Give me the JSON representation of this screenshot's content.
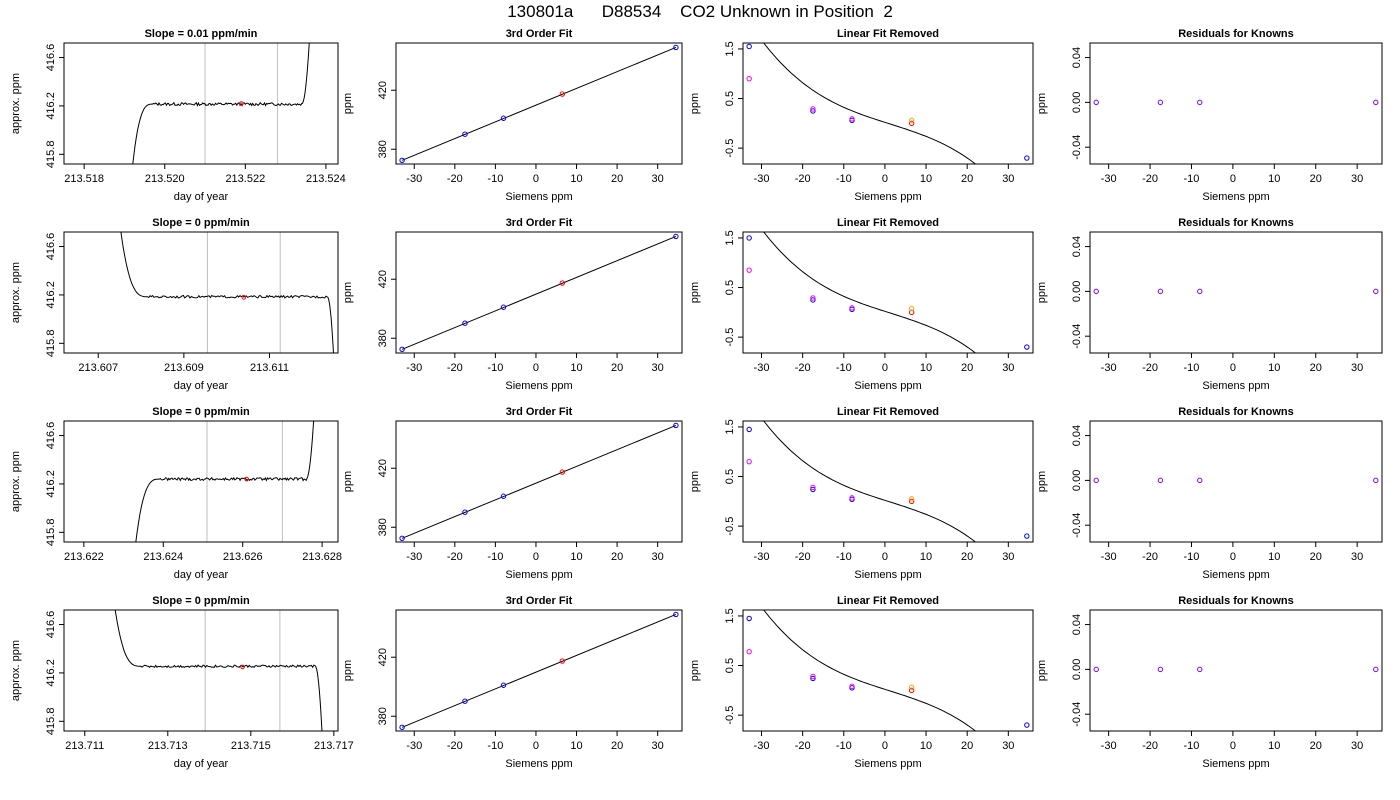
{
  "title": "130801a      D88534    CO2 Unknown in Position  2",
  "colors": {
    "frame": "#000000",
    "trace": "#000000",
    "vline": "#bebebe",
    "known_point": "#0000ff",
    "unknown_point": "#ff0000",
    "orig_point": "#ff00ff",
    "alt_point": "#ffa500",
    "residual_point": "#8000ff"
  },
  "chart_data": [
    {
      "id": "r1-time",
      "type": "line",
      "title": "Slope =  0.01  ppm/min",
      "xlabel": "day of year",
      "ylabel": "approx. ppm",
      "xlim": [
        213.5175,
        213.5243
      ],
      "ylim": [
        415.72,
        416.72
      ],
      "xticks": [
        "213.518",
        "213.520",
        "213.522",
        "213.524"
      ],
      "yticks": [
        "415.8",
        "416.2",
        "416.6"
      ],
      "vlines": [
        213.521,
        213.5228
      ],
      "trace": {
        "start": 213.5192,
        "flat_from": 213.5197,
        "flat_to": 213.5234,
        "end": 213.5236,
        "start_y": 415.7,
        "end_y": 416.8,
        "level": 416.215,
        "noise": 0.012
      },
      "unknown_marker": {
        "x": 213.5219,
        "y": 416.22
      }
    },
    {
      "id": "r1-fit",
      "type": "scatter",
      "title": "3rd Order Fit",
      "xlabel": "Siemens ppm",
      "ylabel": "ppm",
      "xlim": [
        -34.5,
        36
      ],
      "ylim": [
        370,
        452
      ],
      "xticks": [
        "-30",
        "-20",
        "-10",
        "0",
        "10",
        "20",
        "30"
      ],
      "yticks": [
        "380",
        "420"
      ],
      "line": {
        "x1": -33,
        "y1": 372.5,
        "x2": 34.5,
        "y2": 449
      },
      "points": [
        {
          "x": -33,
          "y": 372.5,
          "role": "known"
        },
        {
          "x": -17.5,
          "y": 390.2,
          "role": "known"
        },
        {
          "x": -8,
          "y": 401,
          "role": "known"
        },
        {
          "x": 6.5,
          "y": 417.4,
          "role": "unknown"
        },
        {
          "x": 34.5,
          "y": 449,
          "role": "known"
        }
      ]
    },
    {
      "id": "r1-lin",
      "type": "scatter",
      "title": "Linear Fit Removed",
      "xlabel": "Siemens ppm",
      "ylabel": "ppm",
      "xlim": [
        -34.5,
        36
      ],
      "ylim": [
        -0.82,
        1.62
      ],
      "xticks": [
        "-30",
        "-20",
        "-10",
        "0",
        "10",
        "20",
        "30"
      ],
      "yticks": [
        "-0.5",
        "0.5",
        "1.5"
      ],
      "curve": {
        "x0": -33,
        "x1": 34.5,
        "c0": 0.02,
        "c1": -0.0264,
        "c2": 0.0001,
        "c3": -2.88e-05
      },
      "points": [
        {
          "x": -33,
          "y": 1.55,
          "role": "known"
        },
        {
          "x": -33,
          "y": 0.9,
          "role": "orig"
        },
        {
          "x": -17.5,
          "y": 0.25,
          "role": "known"
        },
        {
          "x": -17.5,
          "y": 0.29,
          "role": "orig"
        },
        {
          "x": -8,
          "y": 0.06,
          "role": "known"
        },
        {
          "x": -8,
          "y": 0.09,
          "role": "orig"
        },
        {
          "x": 6.5,
          "y": 0.0,
          "role": "unknown"
        },
        {
          "x": 6.5,
          "y": 0.06,
          "role": "alt"
        },
        {
          "x": 34.5,
          "y": -0.7,
          "role": "known"
        }
      ]
    },
    {
      "id": "r1-res",
      "type": "scatter",
      "title": "Residuals for Knowns",
      "xlabel": "Siemens ppm",
      "ylabel": "ppm",
      "xlim": [
        -34.5,
        36
      ],
      "ylim": [
        -0.055,
        0.053
      ],
      "xticks": [
        "-30",
        "-20",
        "-10",
        "0",
        "10",
        "20",
        "30"
      ],
      "yticks": [
        "-0.04",
        "0.00",
        "0.04"
      ],
      "points": [
        {
          "x": -33,
          "y": 0,
          "role": "residual"
        },
        {
          "x": -17.5,
          "y": 0,
          "role": "residual"
        },
        {
          "x": -8,
          "y": 0,
          "role": "residual"
        },
        {
          "x": 34.5,
          "y": 0,
          "role": "residual"
        }
      ]
    },
    {
      "id": "r2-time",
      "type": "line",
      "title": "Slope =  0  ppm/min",
      "xlabel": "day of year",
      "ylabel": "approx. ppm",
      "xlim": [
        213.6062,
        213.6126
      ],
      "ylim": [
        415.72,
        416.72
      ],
      "xticks": [
        "213.607",
        "213.609",
        "213.611"
      ],
      "yticks": [
        "415.8",
        "416.2",
        "416.6"
      ],
      "vlines": [
        213.60955,
        213.61125
      ],
      "trace": {
        "start": 213.6075,
        "flat_from": 213.60815,
        "flat_to": 213.61235,
        "end": 213.6125,
        "start_y": 416.8,
        "end_y": 415.68,
        "level": 416.185,
        "noise": 0.01
      },
      "unknown_marker": {
        "x": 213.6104,
        "y": 416.18
      }
    },
    {
      "id": "r2-fit",
      "type": "scatter",
      "title": "3rd Order Fit",
      "xlabel": "Siemens ppm",
      "ylabel": "ppm",
      "xlim": [
        -34.5,
        36
      ],
      "ylim": [
        370,
        452
      ],
      "xticks": [
        "-30",
        "-20",
        "-10",
        "0",
        "10",
        "20",
        "30"
      ],
      "yticks": [
        "380",
        "420"
      ],
      "line": {
        "x1": -33,
        "y1": 372.5,
        "x2": 34.5,
        "y2": 449
      },
      "points": [
        {
          "x": -33,
          "y": 372.5,
          "role": "known"
        },
        {
          "x": -17.5,
          "y": 390.2,
          "role": "known"
        },
        {
          "x": -8,
          "y": 401,
          "role": "known"
        },
        {
          "x": 6.5,
          "y": 417.4,
          "role": "unknown"
        },
        {
          "x": 34.5,
          "y": 449,
          "role": "known"
        }
      ]
    },
    {
      "id": "r2-lin",
      "type": "scatter",
      "title": "Linear Fit Removed",
      "xlabel": "Siemens ppm",
      "ylabel": "ppm",
      "xlim": [
        -34.5,
        36
      ],
      "ylim": [
        -0.82,
        1.62
      ],
      "xticks": [
        "-30",
        "-20",
        "-10",
        "0",
        "10",
        "20",
        "30"
      ],
      "yticks": [
        "-0.5",
        "0.5",
        "1.5"
      ],
      "curve": {
        "x0": -33,
        "x1": 34.5,
        "c0": 0.02,
        "c1": -0.0264,
        "c2": 0.0001,
        "c3": -2.88e-05
      },
      "points": [
        {
          "x": -33,
          "y": 1.5,
          "role": "known"
        },
        {
          "x": -33,
          "y": 0.85,
          "role": "orig"
        },
        {
          "x": -17.5,
          "y": 0.25,
          "role": "known"
        },
        {
          "x": -17.5,
          "y": 0.29,
          "role": "orig"
        },
        {
          "x": -8,
          "y": 0.06,
          "role": "known"
        },
        {
          "x": -8,
          "y": 0.09,
          "role": "orig"
        },
        {
          "x": 6.5,
          "y": 0.0,
          "role": "unknown"
        },
        {
          "x": 6.5,
          "y": 0.08,
          "role": "alt"
        },
        {
          "x": 34.5,
          "y": -0.7,
          "role": "known"
        }
      ]
    },
    {
      "id": "r2-res",
      "type": "scatter",
      "title": "Residuals for Knowns",
      "xlabel": "Siemens ppm",
      "ylabel": "ppm",
      "xlim": [
        -34.5,
        36
      ],
      "ylim": [
        -0.055,
        0.053
      ],
      "xticks": [
        "-30",
        "-20",
        "-10",
        "0",
        "10",
        "20",
        "30"
      ],
      "yticks": [
        "-0.04",
        "0.00",
        "0.04"
      ],
      "points": [
        {
          "x": -33,
          "y": 0,
          "role": "residual"
        },
        {
          "x": -17.5,
          "y": 0,
          "role": "residual"
        },
        {
          "x": -8,
          "y": 0,
          "role": "residual"
        },
        {
          "x": 34.5,
          "y": 0,
          "role": "residual"
        }
      ]
    },
    {
      "id": "r3-time",
      "type": "line",
      "title": "Slope =  0  ppm/min",
      "xlabel": "day of year",
      "ylabel": "approx. ppm",
      "xlim": [
        213.6215,
        213.6284
      ],
      "ylim": [
        415.72,
        416.72
      ],
      "xticks": [
        "213.622",
        "213.624",
        "213.626",
        "213.628"
      ],
      "yticks": [
        "415.8",
        "416.2",
        "416.6"
      ],
      "vlines": [
        213.6251,
        213.627
      ],
      "trace": {
        "start": 213.6233,
        "flat_from": 213.6239,
        "flat_to": 213.6276,
        "end": 213.6278,
        "start_y": 415.7,
        "end_y": 416.8,
        "level": 416.24,
        "noise": 0.012
      },
      "unknown_marker": {
        "x": 213.6261,
        "y": 416.24
      }
    },
    {
      "id": "r3-fit",
      "type": "scatter",
      "title": "3rd Order Fit",
      "xlabel": "Siemens ppm",
      "ylabel": "ppm",
      "xlim": [
        -34.5,
        36
      ],
      "ylim": [
        370,
        452
      ],
      "xticks": [
        "-30",
        "-20",
        "-10",
        "0",
        "10",
        "20",
        "30"
      ],
      "yticks": [
        "380",
        "420"
      ],
      "line": {
        "x1": -33,
        "y1": 372.5,
        "x2": 34.5,
        "y2": 449
      },
      "points": [
        {
          "x": -33,
          "y": 372.5,
          "role": "known"
        },
        {
          "x": -17.5,
          "y": 390.2,
          "role": "known"
        },
        {
          "x": -8,
          "y": 401,
          "role": "known"
        },
        {
          "x": 6.5,
          "y": 417.4,
          "role": "unknown"
        },
        {
          "x": 34.5,
          "y": 449,
          "role": "known"
        }
      ]
    },
    {
      "id": "r3-lin",
      "type": "scatter",
      "title": "Linear Fit Removed",
      "xlabel": "Siemens ppm",
      "ylabel": "ppm",
      "xlim": [
        -34.5,
        36
      ],
      "ylim": [
        -0.82,
        1.62
      ],
      "xticks": [
        "-30",
        "-20",
        "-10",
        "0",
        "10",
        "20",
        "30"
      ],
      "yticks": [
        "-0.5",
        "0.5",
        "1.5"
      ],
      "curve": {
        "x0": -33,
        "x1": 34.5,
        "c0": 0.02,
        "c1": -0.0264,
        "c2": 0.0001,
        "c3": -2.88e-05
      },
      "points": [
        {
          "x": -33,
          "y": 1.45,
          "role": "known"
        },
        {
          "x": -33,
          "y": 0.8,
          "role": "orig"
        },
        {
          "x": -17.5,
          "y": 0.24,
          "role": "known"
        },
        {
          "x": -17.5,
          "y": 0.28,
          "role": "orig"
        },
        {
          "x": -8,
          "y": 0.04,
          "role": "known"
        },
        {
          "x": -8,
          "y": 0.07,
          "role": "orig"
        },
        {
          "x": 6.5,
          "y": 0.0,
          "role": "unknown"
        },
        {
          "x": 6.5,
          "y": 0.05,
          "role": "alt"
        },
        {
          "x": 34.5,
          "y": -0.7,
          "role": "known"
        }
      ]
    },
    {
      "id": "r3-res",
      "type": "scatter",
      "title": "Residuals for Knowns",
      "xlabel": "Siemens ppm",
      "ylabel": "ppm",
      "xlim": [
        -34.5,
        36
      ],
      "ylim": [
        -0.055,
        0.053
      ],
      "xticks": [
        "-30",
        "-20",
        "-10",
        "0",
        "10",
        "20",
        "30"
      ],
      "yticks": [
        "-0.04",
        "0.00",
        "0.04"
      ],
      "points": [
        {
          "x": -33,
          "y": 0,
          "role": "residual"
        },
        {
          "x": -17.5,
          "y": 0,
          "role": "residual"
        },
        {
          "x": -8,
          "y": 0,
          "role": "residual"
        },
        {
          "x": 34.5,
          "y": 0,
          "role": "residual"
        }
      ]
    },
    {
      "id": "r4-time",
      "type": "line",
      "title": "Slope =  0  ppm/min",
      "xlabel": "day of year",
      "ylabel": "approx. ppm",
      "xlim": [
        213.7105,
        213.7171
      ],
      "ylim": [
        415.72,
        416.72
      ],
      "xticks": [
        "213.711",
        "213.713",
        "213.715",
        "213.717"
      ],
      "yticks": [
        "415.8",
        "416.2",
        "416.6"
      ],
      "vlines": [
        213.7139,
        213.7157
      ],
      "trace": {
        "start": 213.7117,
        "flat_from": 213.71235,
        "flat_to": 213.71655,
        "end": 213.71672,
        "start_y": 416.8,
        "end_y": 415.68,
        "level": 416.255,
        "noise": 0.01
      },
      "unknown_marker": {
        "x": 213.7148,
        "y": 416.25
      }
    },
    {
      "id": "r4-fit",
      "type": "scatter",
      "title": "3rd Order Fit",
      "xlabel": "Siemens ppm",
      "ylabel": "ppm",
      "xlim": [
        -34.5,
        36
      ],
      "ylim": [
        370,
        452
      ],
      "xticks": [
        "-30",
        "-20",
        "-10",
        "0",
        "10",
        "20",
        "30"
      ],
      "yticks": [
        "380",
        "420"
      ],
      "line": {
        "x1": -33,
        "y1": 372.5,
        "x2": 34.5,
        "y2": 449
      },
      "points": [
        {
          "x": -33,
          "y": 372.5,
          "role": "known"
        },
        {
          "x": -17.5,
          "y": 390.2,
          "role": "known"
        },
        {
          "x": -8,
          "y": 401,
          "role": "known"
        },
        {
          "x": 6.5,
          "y": 417.4,
          "role": "unknown"
        },
        {
          "x": 34.5,
          "y": 449,
          "role": "known"
        }
      ]
    },
    {
      "id": "r4-lin",
      "type": "scatter",
      "title": "Linear Fit Removed",
      "xlabel": "Siemens ppm",
      "ylabel": "ppm",
      "xlim": [
        -34.5,
        36
      ],
      "ylim": [
        -0.82,
        1.62
      ],
      "xticks": [
        "-30",
        "-20",
        "-10",
        "0",
        "10",
        "20",
        "30"
      ],
      "yticks": [
        "-0.5",
        "0.5",
        "1.5"
      ],
      "curve": {
        "x0": -33,
        "x1": 34.5,
        "c0": 0.02,
        "c1": -0.0264,
        "c2": 0.0001,
        "c3": -2.88e-05
      },
      "points": [
        {
          "x": -33,
          "y": 1.45,
          "role": "known"
        },
        {
          "x": -33,
          "y": 0.78,
          "role": "orig"
        },
        {
          "x": -17.5,
          "y": 0.24,
          "role": "known"
        },
        {
          "x": -17.5,
          "y": 0.28,
          "role": "orig"
        },
        {
          "x": -8,
          "y": 0.05,
          "role": "known"
        },
        {
          "x": -8,
          "y": 0.08,
          "role": "orig"
        },
        {
          "x": 6.5,
          "y": 0.0,
          "role": "unknown"
        },
        {
          "x": 6.5,
          "y": 0.06,
          "role": "alt"
        },
        {
          "x": 34.5,
          "y": -0.7,
          "role": "known"
        }
      ]
    },
    {
      "id": "r4-res",
      "type": "scatter",
      "title": "Residuals for Knowns",
      "xlabel": "Siemens ppm",
      "ylabel": "ppm",
      "xlim": [
        -34.5,
        36
      ],
      "ylim": [
        -0.055,
        0.053
      ],
      "xticks": [
        "-30",
        "-20",
        "-10",
        "0",
        "10",
        "20",
        "30"
      ],
      "yticks": [
        "-0.04",
        "0.00",
        "0.04"
      ],
      "points": [
        {
          "x": -33,
          "y": 0,
          "role": "residual"
        },
        {
          "x": -17.5,
          "y": 0,
          "role": "residual"
        },
        {
          "x": -8,
          "y": 0,
          "role": "residual"
        },
        {
          "x": 34.5,
          "y": 0,
          "role": "residual"
        }
      ]
    }
  ]
}
